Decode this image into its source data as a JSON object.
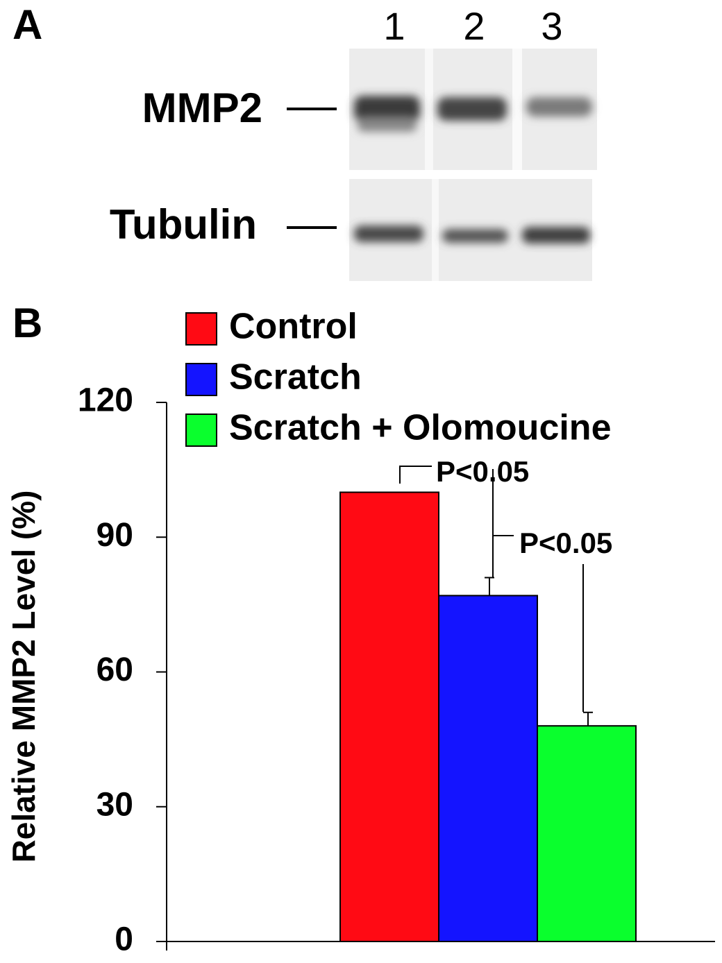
{
  "panels": {
    "a": "A",
    "b": "B"
  },
  "blot": {
    "lanes": [
      "1",
      "2",
      "3"
    ],
    "rows": [
      "MMP2",
      "Tubulin"
    ]
  },
  "chart_data": {
    "type": "bar",
    "ylabel": "Relative MMP2 Level (%)",
    "categories": [
      null
    ],
    "series": [
      {
        "name": "Control",
        "color": "#ff0a14",
        "values": [
          100
        ]
      },
      {
        "name": "Scratch",
        "color": "#1414ff",
        "values": [
          77
        ],
        "errors": [
          4
        ]
      },
      {
        "name": "Scratch + Olomoucine",
        "color": "#0aff2d",
        "values": [
          48
        ],
        "errors": [
          3
        ]
      }
    ],
    "ylim": [
      0,
      120
    ],
    "yticks": [
      0,
      30,
      60,
      90,
      120
    ],
    "annotations": [
      "P<0.05",
      "P<0.05"
    ]
  }
}
